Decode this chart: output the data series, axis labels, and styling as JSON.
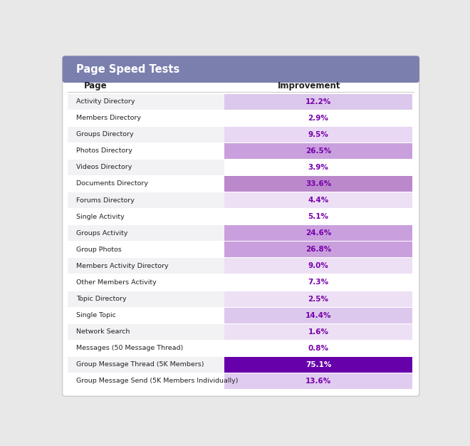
{
  "title": "Page Speed Tests",
  "title_bg": "#7b7fad",
  "title_color": "#ffffff",
  "header_page": "Page",
  "header_improvement": "Improvement",
  "rows": [
    {
      "label": "Activity Directory",
      "value": 12.2,
      "text": "12.2%",
      "bar_color": "#dcc8ec",
      "text_color": "#7700aa"
    },
    {
      "label": "Members Directory",
      "value": 2.9,
      "text": "2.9%",
      "bar_color": null,
      "text_color": "#7700aa"
    },
    {
      "label": "Groups Directory",
      "value": 9.5,
      "text": "9.5%",
      "bar_color": "#e8d8f4",
      "text_color": "#7700aa"
    },
    {
      "label": "Photos Directory",
      "value": 26.5,
      "text": "26.5%",
      "bar_color": "#c9a0dd",
      "text_color": "#7700aa"
    },
    {
      "label": "Videos Directory",
      "value": 3.9,
      "text": "3.9%",
      "bar_color": null,
      "text_color": "#7700aa"
    },
    {
      "label": "Documents Directory",
      "value": 33.6,
      "text": "33.6%",
      "bar_color": "#bb88cc",
      "text_color": "#7700aa"
    },
    {
      "label": "Forums Directory",
      "value": 4.4,
      "text": "4.4%",
      "bar_color": "#ede0f5",
      "text_color": "#7700aa"
    },
    {
      "label": "Single Activity",
      "value": 5.1,
      "text": "5.1%",
      "bar_color": null,
      "text_color": "#7700aa"
    },
    {
      "label": "Groups Activity",
      "value": 24.6,
      "text": "24.6%",
      "bar_color": "#c9a0dd",
      "text_color": "#7700aa"
    },
    {
      "label": "Group Photos",
      "value": 26.8,
      "text": "26.8%",
      "bar_color": "#c9a0dd",
      "text_color": "#7700aa"
    },
    {
      "label": "Members Activity Directory",
      "value": 9.0,
      "text": "9.0%",
      "bar_color": "#ede0f5",
      "text_color": "#7700aa"
    },
    {
      "label": "Other Members Activity",
      "value": 7.3,
      "text": "7.3%",
      "bar_color": null,
      "text_color": "#7700aa"
    },
    {
      "label": "Topic Directory",
      "value": 2.5,
      "text": "2.5%",
      "bar_color": "#ede0f5",
      "text_color": "#7700aa"
    },
    {
      "label": "Single Topic",
      "value": 14.4,
      "text": "14.4%",
      "bar_color": "#dcc8ec",
      "text_color": "#7700aa"
    },
    {
      "label": "Network Search",
      "value": 1.6,
      "text": "1.6%",
      "bar_color": "#ede0f5",
      "text_color": "#7700aa"
    },
    {
      "label": "Messages (50 Message Thread)",
      "value": 0.8,
      "text": "0.8%",
      "bar_color": null,
      "text_color": "#7700aa"
    },
    {
      "label": "Group Message Thread (5K Members)",
      "value": 75.1,
      "text": "75.1%",
      "bar_color": "#6600aa",
      "text_color": "#ffffff"
    },
    {
      "label": "Group Message Send (5K Members Individually)",
      "value": 13.6,
      "text": "13.6%",
      "bar_color": "#e0ccf0",
      "text_color": "#7700aa"
    }
  ],
  "bg_color": "#ffffff",
  "outer_bg": "#e8e8e8",
  "row_alt_color": "#f2f2f5",
  "row_white": "#ffffff",
  "text_dark": "#222222",
  "border_color": "#cccccc",
  "fig_width": 6.6,
  "fig_height": 6.26
}
